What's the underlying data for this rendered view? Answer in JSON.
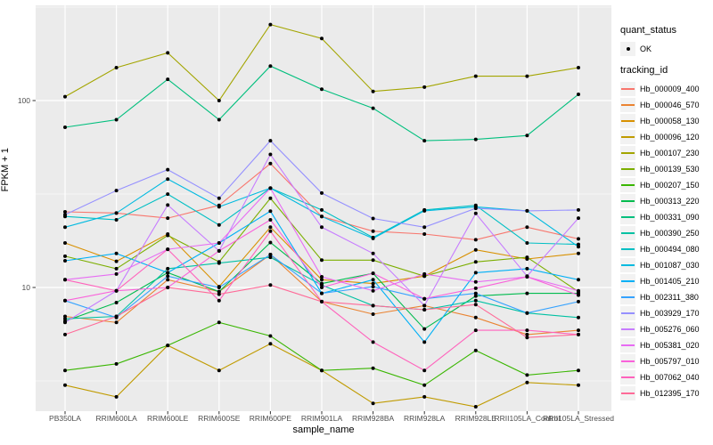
{
  "figure": {
    "background": "#FFFFFF",
    "panel_background": "#EBEBEB",
    "gridline_color": "#FFFFFF",
    "point_color": "#000000",
    "tick_color": "#333333",
    "tick_label_color": "#4D4D4D"
  },
  "axes": {
    "x_title": "sample_name",
    "y_title": "FPKM + 1",
    "y_tick_labels": [
      "100",
      "10"
    ],
    "y_tick_values": [
      100,
      10
    ],
    "y_minor_values": [
      316.23,
      31.623,
      3.1623
    ]
  },
  "legend": {
    "quant_status_title": "quant_status",
    "quant_status_items": [
      {
        "label": "OK",
        "marker": "point"
      }
    ],
    "tracking_id_title": "tracking_id"
  },
  "chart_data": {
    "type": "line",
    "title": "",
    "xlabel": "sample_name",
    "ylabel": "FPKM + 1",
    "y_scale": "log10",
    "ylim": [
      2,
      320
    ],
    "grid": true,
    "legend_position": "right",
    "marker": "black-point-all-vertices",
    "categories": [
      "PB350LA",
      "RRIM600LA",
      "RRIM600LE",
      "RRIM600SE",
      "RRIM600PE",
      "RRIM901LA",
      "RRIM928BA",
      "RRIM928LA",
      "RRIM928LE",
      "RRII105LA_Control",
      "RRII105LA_Stressed"
    ],
    "series": [
      {
        "name": "Hb_000009_400",
        "color": "#F8766D",
        "values": [
          25.4,
          25,
          23.5,
          27.5,
          46,
          24,
          20,
          19.3,
          18,
          21,
          18.2
        ]
      },
      {
        "name": "Hb_000046_570",
        "color": "#EA8331",
        "values": [
          7,
          6.5,
          11,
          9.5,
          15,
          8.4,
          7.2,
          8,
          6.9,
          5.6,
          5.9
        ]
      },
      {
        "name": "Hb_000058_130",
        "color": "#D89000",
        "values": [
          17.3,
          13.8,
          19.3,
          10.1,
          21,
          11,
          10.5,
          11.5,
          15.9,
          14.2,
          15.2
        ]
      },
      {
        "name": "Hb_000096_120",
        "color": "#C09B00",
        "values": [
          3,
          2.6,
          4.9,
          3.6,
          5,
          3.6,
          2.4,
          2.6,
          2.3,
          3.1,
          3
        ]
      },
      {
        "name": "Hb_000107_230",
        "color": "#A3A500",
        "values": [
          105,
          150,
          180,
          100,
          255,
          215,
          112,
          118,
          135,
          135,
          150
        ]
      },
      {
        "name": "Hb_000139_530",
        "color": "#7CAE00",
        "values": [
          14.7,
          12.6,
          19,
          13.7,
          30,
          14,
          14,
          11.5,
          13.7,
          14.5,
          9.5
        ]
      },
      {
        "name": "Hb_000207_150",
        "color": "#39B600",
        "values": [
          3.6,
          3.9,
          4.9,
          6.5,
          5.5,
          3.6,
          3.7,
          3,
          4.6,
          3.4,
          3.6
        ]
      },
      {
        "name": "Hb_000313_220",
        "color": "#00BB4E",
        "values": [
          6.6,
          8.3,
          12,
          9.5,
          17.4,
          10.5,
          11.9,
          6,
          9,
          9.3,
          9.3
        ]
      },
      {
        "name": "Hb_000331_090",
        "color": "#00BF7D",
        "values": [
          72,
          79,
          130,
          79,
          153,
          115,
          91,
          61,
          62,
          65,
          108
        ]
      },
      {
        "name": "Hb_000390_250",
        "color": "#00C1A3",
        "values": [
          6.8,
          7,
          12.6,
          13.5,
          14.5,
          10.3,
          8,
          7.6,
          8.5,
          7.3,
          6.9
        ]
      },
      {
        "name": "Hb_000494_080",
        "color": "#00BFC4",
        "values": [
          24,
          23,
          31.6,
          21.6,
          34,
          26,
          18.5,
          26,
          27.5,
          17.3,
          17
        ]
      },
      {
        "name": "Hb_001087_030",
        "color": "#00BAE0",
        "values": [
          21,
          25,
          38,
          27,
          34,
          24,
          18.3,
          25.7,
          27,
          25.7,
          16.5
        ]
      },
      {
        "name": "Hb_001405_210",
        "color": "#00B0F6",
        "values": [
          13.9,
          15.2,
          12,
          17.3,
          25.6,
          9.3,
          11,
          5.1,
          12,
          12.6,
          11
        ]
      },
      {
        "name": "Hb_002311_380",
        "color": "#35A2FF",
        "values": [
          8.5,
          6.9,
          11.5,
          10,
          15,
          9.3,
          10.1,
          8.7,
          9.3,
          7.3,
          8.4
        ]
      },
      {
        "name": "Hb_003929_170",
        "color": "#9590FF",
        "values": [
          24.5,
          33,
          42.7,
          30,
          61,
          32,
          23.4,
          21,
          26.5,
          25.7,
          26
        ]
      },
      {
        "name": "Hb_005276_060",
        "color": "#C77CFF",
        "values": [
          6.5,
          9.6,
          27.6,
          15.7,
          51.5,
          21,
          15.2,
          8,
          24.9,
          11.5,
          23.5
        ]
      },
      {
        "name": "Hb_005381_020",
        "color": "#E76BF3",
        "values": [
          11,
          11.8,
          16,
          17.3,
          34,
          11.4,
          9.6,
          11.8,
          10.7,
          11.4,
          9.6
        ]
      },
      {
        "name": "Hb_005797_010",
        "color": "#FA62DB",
        "values": [
          8.5,
          9.6,
          10,
          15.7,
          23,
          10,
          11.9,
          8.7,
          9.9,
          11.4,
          9.1
        ]
      },
      {
        "name": "Hb_007062_040",
        "color": "#FF62BC",
        "values": [
          11,
          9.6,
          16,
          8.5,
          20,
          8.4,
          5.1,
          3.6,
          5.9,
          5.9,
          5.6
        ]
      },
      {
        "name": "Hb_012395_170",
        "color": "#FF6A98",
        "values": [
          5.6,
          7,
          10,
          9.2,
          10.3,
          8.4,
          8,
          7.6,
          8.1,
          5.4,
          5.6
        ]
      }
    ]
  }
}
